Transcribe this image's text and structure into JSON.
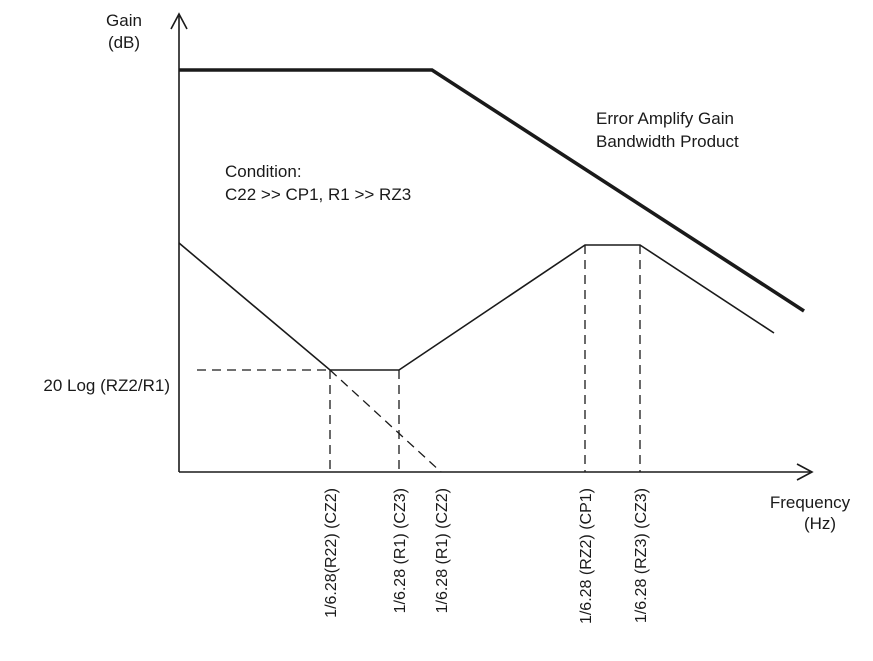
{
  "axes": {
    "y_label_line1": "Gain",
    "y_label_line2": "(dB)",
    "x_label_line1": "Frequency",
    "x_label_line2": "(Hz)"
  },
  "annotations": {
    "gbp_line1": "Error Amplify Gain",
    "gbp_line2": "Bandwidth Product",
    "condition_line1": "Condition:",
    "condition_line2": "C22 >> CP1, R1 >> RZ3",
    "level_label": "20 Log (RZ2/R1)"
  },
  "x_ticks": [
    "1/6.28(R22) (CZ2)",
    "1/6.28 (R1) (CZ3)",
    "1/6.28 (R1) (CZ2)",
    "1/6.28 (RZ2) (CP1)",
    "1/6.28 (RZ3) (CZ3)"
  ],
  "colors": {
    "line": "#1a1a1a",
    "background": "#ffffff"
  }
}
